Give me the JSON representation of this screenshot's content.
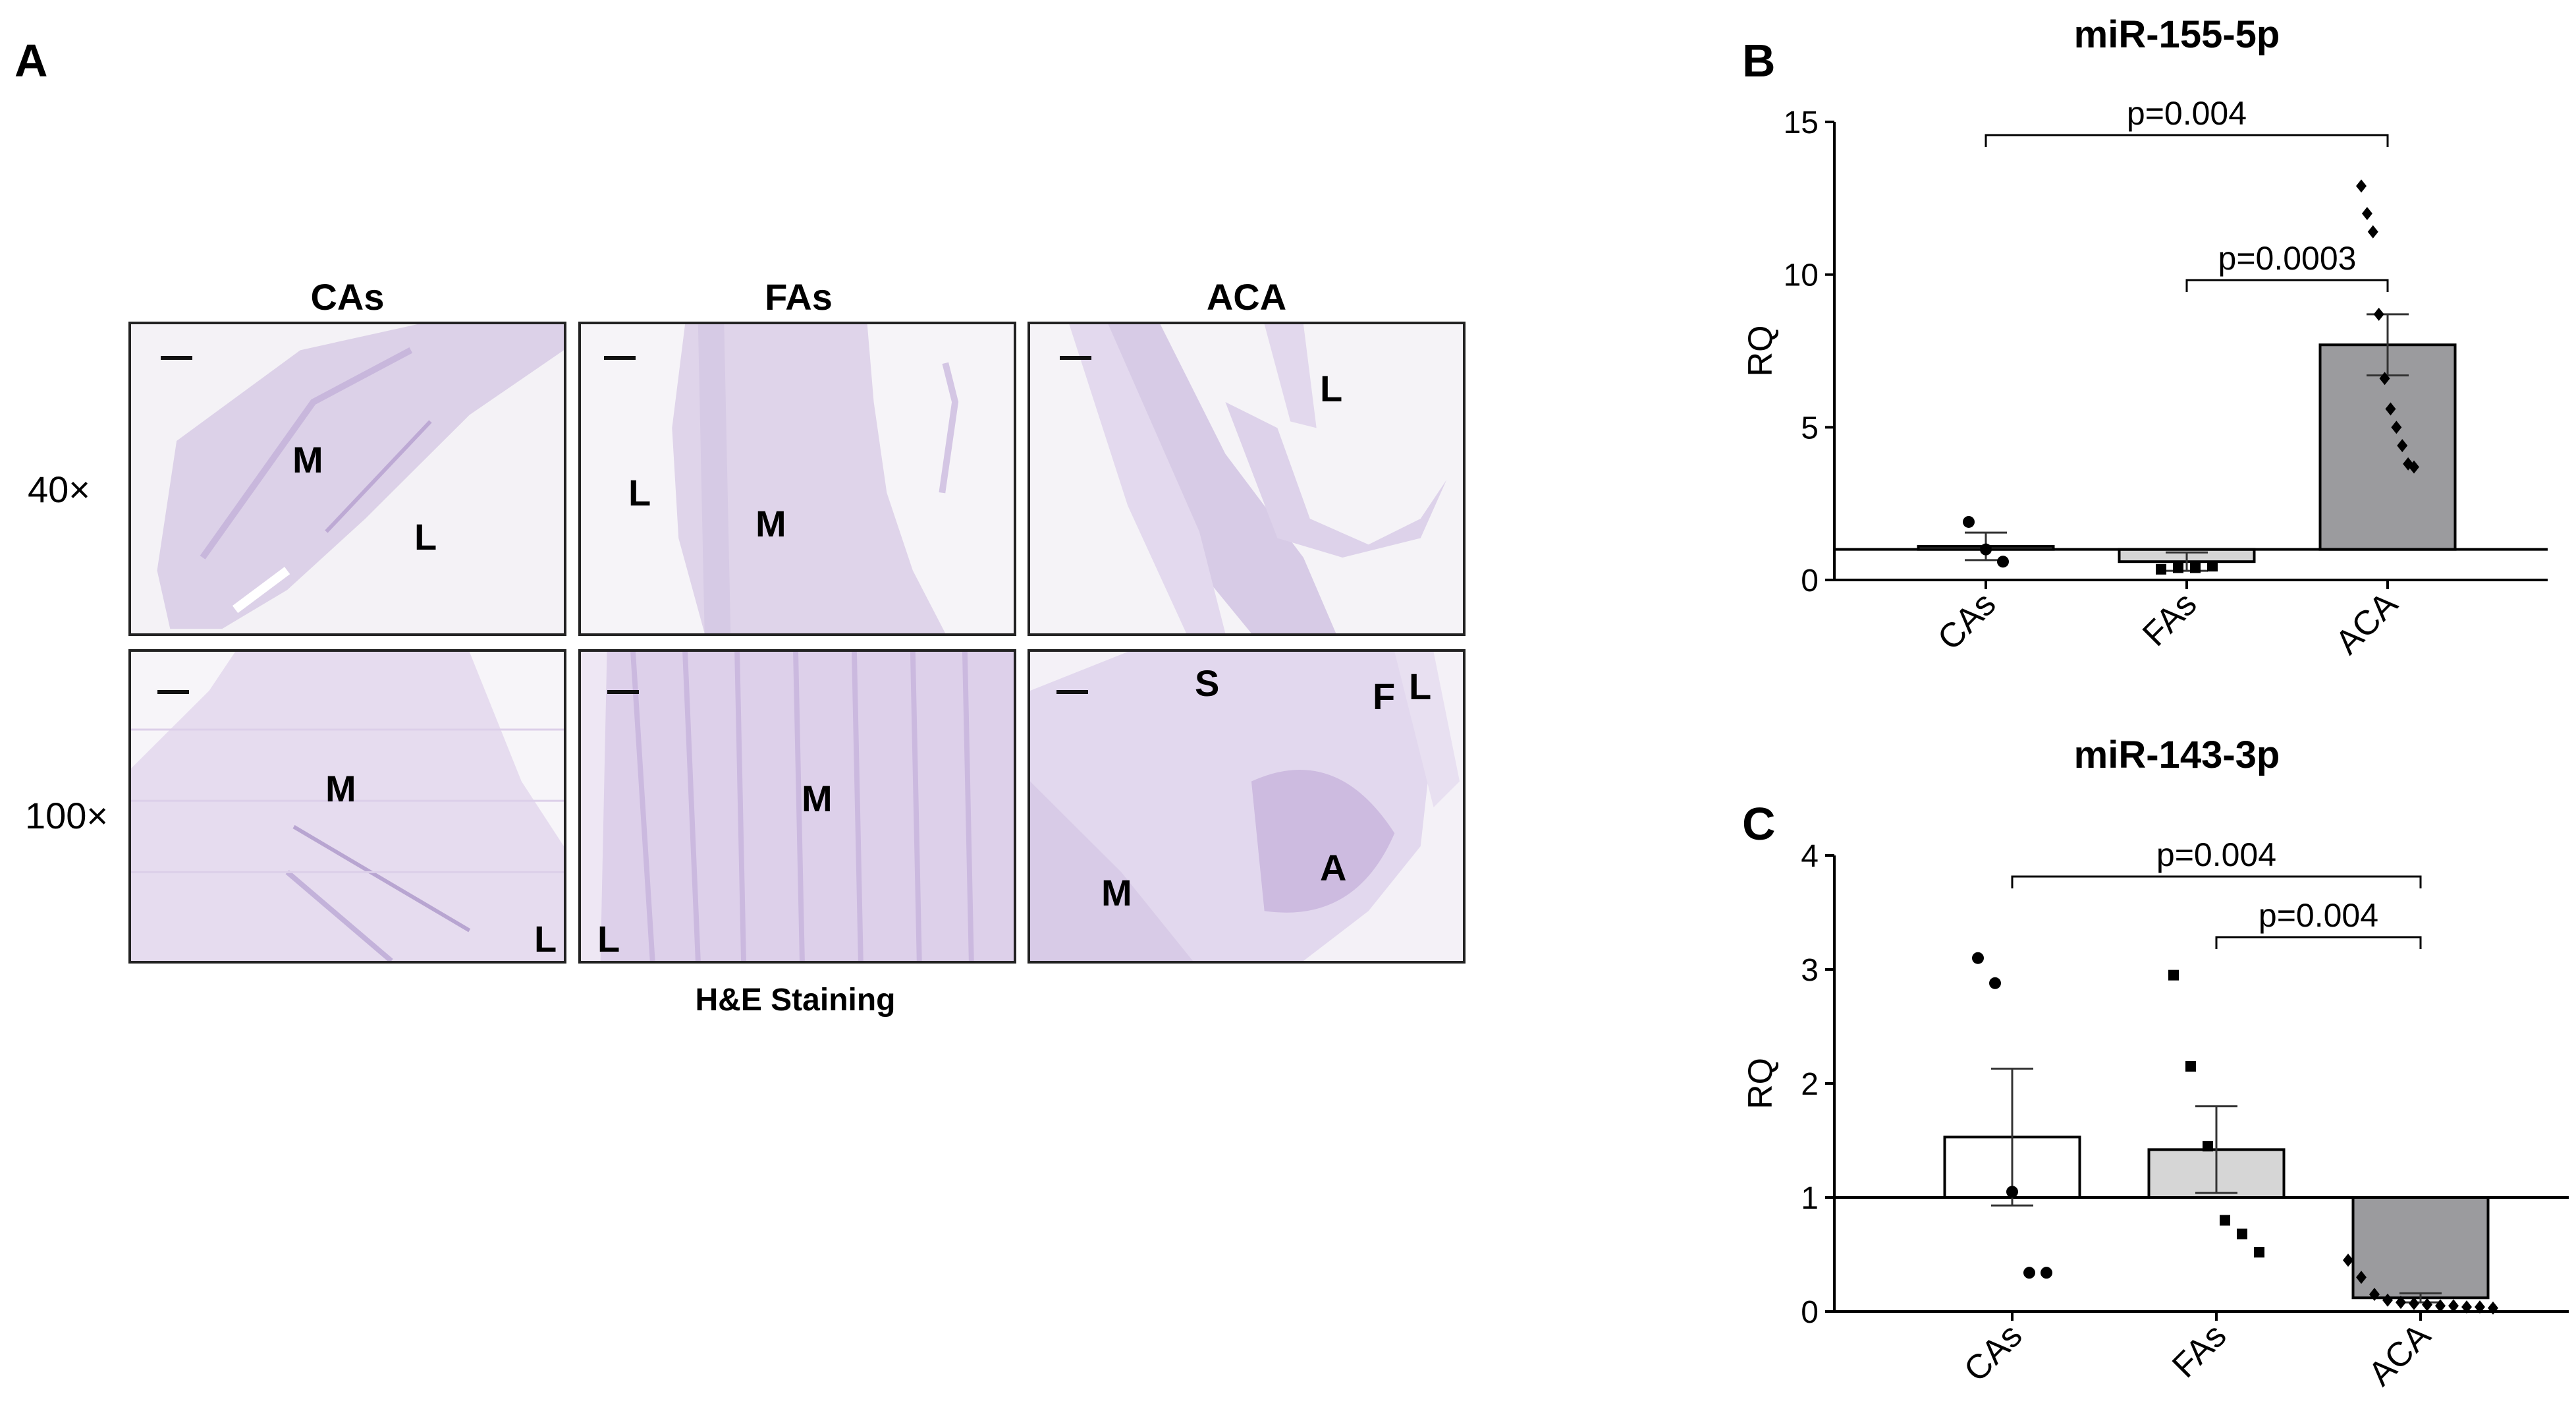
{
  "panelA": {
    "letter": "A",
    "columns": [
      "CAs",
      "FAs",
      "ACA"
    ],
    "rows": [
      "40×",
      "100×"
    ],
    "caption": "H&E Staining",
    "tiles": [
      [
        {
          "labels": [
            "M",
            "L"
          ]
        },
        {
          "labels": [
            "L",
            "M"
          ]
        },
        {
          "labels": [
            "L"
          ]
        }
      ],
      [
        {
          "labels": [
            "M",
            "L"
          ]
        },
        {
          "labels": [
            "M",
            "L"
          ]
        },
        {
          "labels": [
            "S",
            "F",
            "L",
            "A",
            "M"
          ]
        }
      ]
    ]
  },
  "chart_data": [
    {
      "panel": "B",
      "type": "bar",
      "title": "miR-155-5p",
      "ylabel": "RQ",
      "categories": [
        "CAs",
        "FAs",
        "ACA"
      ],
      "values": [
        1.1,
        0.6,
        7.7
      ],
      "errors": [
        0.45,
        0.3,
        1.0
      ],
      "ylim": [
        0,
        15
      ],
      "yticks": [
        0,
        5,
        10,
        15
      ],
      "baseline": 1,
      "colors": [
        "#ffffff",
        "#d6d6d6",
        "#9b9b9e"
      ],
      "points": [
        [
          1.9,
          1.0,
          0.6
        ],
        [
          0.35,
          0.4,
          0.4,
          0.45
        ],
        [
          12.9,
          12.0,
          11.4,
          8.7,
          6.6,
          5.6,
          5.0,
          4.4,
          3.8,
          3.7
        ]
      ],
      "markers": [
        "circle",
        "square",
        "diamond"
      ],
      "significance": [
        {
          "from": "CAs",
          "to": "ACA",
          "label": "p=0.004"
        },
        {
          "from": "FAs",
          "to": "ACA",
          "label": "p=0.0003"
        }
      ]
    },
    {
      "panel": "C",
      "type": "bar",
      "title": "miR-143-3p",
      "ylabel": "RQ",
      "categories": [
        "CAs",
        "FAs",
        "ACA"
      ],
      "values": [
        1.53,
        1.42,
        0.12
      ],
      "errors": [
        0.6,
        0.38,
        0.04
      ],
      "ylim": [
        0,
        4
      ],
      "yticks": [
        0,
        1,
        2,
        3,
        4
      ],
      "baseline": 1,
      "colors": [
        "#ffffff",
        "#d6d6d6",
        "#9b9b9e"
      ],
      "points": [
        [
          3.1,
          2.88,
          1.05,
          0.34,
          0.34
        ],
        [
          2.95,
          2.15,
          1.45,
          0.8,
          0.68,
          0.52
        ],
        [
          0.45,
          0.3,
          0.15,
          0.1,
          0.08,
          0.07,
          0.06,
          0.05,
          0.05,
          0.04,
          0.04,
          0.03
        ]
      ],
      "markers": [
        "circle",
        "square",
        "diamond"
      ],
      "significance": [
        {
          "from": "CAs",
          "to": "ACA",
          "label": "p=0.004"
        },
        {
          "from": "FAs",
          "to": "ACA",
          "label": "p=0.004"
        }
      ]
    }
  ]
}
